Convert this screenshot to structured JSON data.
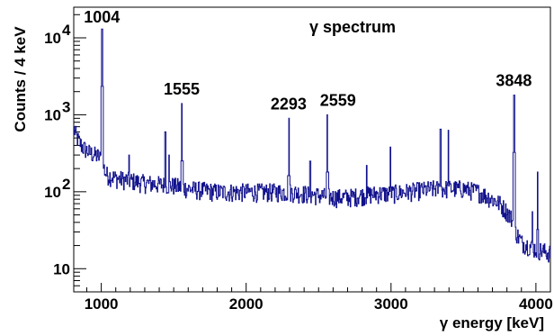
{
  "chart_data": {
    "type": "line",
    "title": "γ spectrum",
    "xlabel": "γ energy [keV]",
    "ylabel": "Counts / 4 keV",
    "xlim": [
      810,
      4100
    ],
    "ylim": [
      5,
      25000
    ],
    "yscale": "log",
    "grid": false,
    "line_color": "#10108c",
    "x_ticks": [
      1000,
      2000,
      3000,
      4000
    ],
    "y_ticks": [
      {
        "value": 10,
        "label": "10",
        "exp": ""
      },
      {
        "value": 100,
        "label": "10",
        "exp": "2"
      },
      {
        "value": 1000,
        "label": "10",
        "exp": "3"
      },
      {
        "value": 10000,
        "label": "10",
        "exp": "4"
      }
    ],
    "peaks": [
      {
        "x": 1004,
        "y": 13000,
        "label": "1004"
      },
      {
        "x": 1555,
        "y": 1400,
        "label": "1555"
      },
      {
        "x": 2293,
        "y": 900,
        "label": "2293"
      },
      {
        "x": 2559,
        "y": 1000,
        "label": "2559"
      },
      {
        "x": 3848,
        "y": 1800,
        "label": "3848"
      }
    ],
    "minor_peaks": [
      {
        "x": 1190,
        "y": 300
      },
      {
        "x": 1440,
        "y": 600
      },
      {
        "x": 1465,
        "y": 300
      },
      {
        "x": 2440,
        "y": 250
      },
      {
        "x": 2830,
        "y": 220
      },
      {
        "x": 2995,
        "y": 380
      },
      {
        "x": 3340,
        "y": 650
      },
      {
        "x": 3395,
        "y": 630
      },
      {
        "x": 3975,
        "y": 55
      },
      {
        "x": 4010,
        "y": 180
      }
    ],
    "continuum": [
      [
        810,
        650
      ],
      [
        830,
        500
      ],
      [
        870,
        380
      ],
      [
        920,
        320
      ],
      [
        980,
        290
      ],
      [
        1000,
        260
      ],
      [
        1030,
        170
      ],
      [
        1100,
        150
      ],
      [
        1200,
        140
      ],
      [
        1300,
        130
      ],
      [
        1400,
        125
      ],
      [
        1500,
        120
      ],
      [
        1600,
        110
      ],
      [
        1700,
        105
      ],
      [
        1800,
        100
      ],
      [
        1900,
        100
      ],
      [
        2000,
        100
      ],
      [
        2100,
        100
      ],
      [
        2200,
        100
      ],
      [
        2300,
        100
      ],
      [
        2400,
        95
      ],
      [
        2500,
        90
      ],
      [
        2600,
        85
      ],
      [
        2700,
        85
      ],
      [
        2800,
        90
      ],
      [
        2900,
        95
      ],
      [
        3000,
        95
      ],
      [
        3100,
        100
      ],
      [
        3200,
        105
      ],
      [
        3300,
        110
      ],
      [
        3400,
        110
      ],
      [
        3500,
        110
      ],
      [
        3600,
        100
      ],
      [
        3650,
        90
      ],
      [
        3700,
        80
      ],
      [
        3750,
        70
      ],
      [
        3800,
        55
      ],
      [
        3830,
        45
      ],
      [
        3860,
        30
      ],
      [
        3900,
        22
      ],
      [
        3950,
        20
      ],
      [
        4000,
        18
      ],
      [
        4050,
        17
      ],
      [
        4100,
        16
      ]
    ]
  }
}
